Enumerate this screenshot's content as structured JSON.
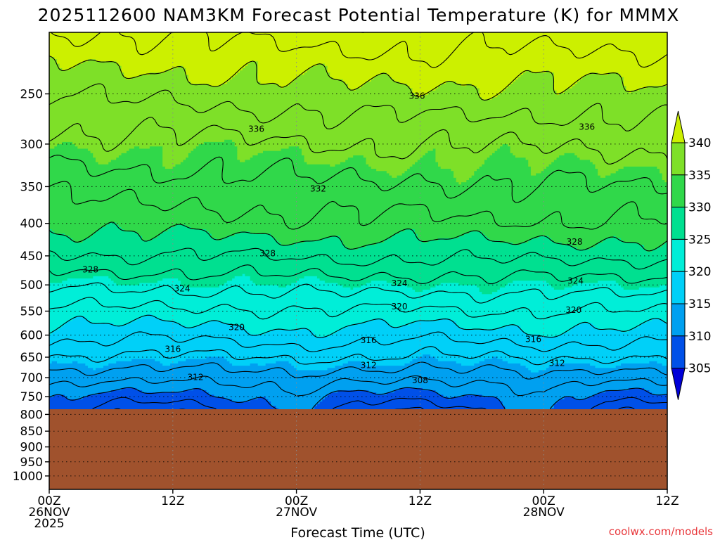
{
  "chart_data": {
    "type": "contour",
    "title": "2025112600 NAM3KM Forecast Potential Temperature (K) for MMMX",
    "xlabel": "Forecast Time (UTC)",
    "ylabel": "",
    "credit": "coolwx.com/models",
    "credit_color": "#e8363a",
    "x_ticks": [
      {
        "hour": 0,
        "lines": [
          "00Z",
          "26NOV",
          "2025"
        ]
      },
      {
        "hour": 12,
        "lines": [
          "12Z"
        ]
      },
      {
        "hour": 24,
        "lines": [
          "00Z",
          "27NOV"
        ]
      },
      {
        "hour": 36,
        "lines": [
          "12Z"
        ]
      },
      {
        "hour": 48,
        "lines": [
          "00Z",
          "28NOV"
        ]
      },
      {
        "hour": 60,
        "lines": [
          "12Z"
        ]
      }
    ],
    "x_range_hours": [
      0,
      60
    ],
    "y_range_hpa": [
      1050,
      200
    ],
    "y_scale": "log",
    "y_ticks": [
      250,
      300,
      350,
      400,
      450,
      500,
      550,
      600,
      650,
      700,
      750,
      800,
      850,
      900,
      950,
      1000
    ],
    "surface_pressure_hpa": 785,
    "underground_color": "#a0522d",
    "fill_bands": [
      {
        "range": [
          300,
          305
        ],
        "color": "#0000d8"
      },
      {
        "range": [
          305,
          310
        ],
        "color": "#0050e8"
      },
      {
        "range": [
          310,
          315
        ],
        "color": "#00a0f0"
      },
      {
        "range": [
          315,
          320
        ],
        "color": "#00d0f8"
      },
      {
        "range": [
          320,
          325
        ],
        "color": "#00eed8"
      },
      {
        "range": [
          325,
          330
        ],
        "color": "#00e090"
      },
      {
        "range": [
          330,
          335
        ],
        "color": "#30d84a"
      },
      {
        "range": [
          335,
          340
        ],
        "color": "#7ee028"
      },
      {
        "range": [
          340,
          345
        ],
        "color": "#ccf000"
      }
    ],
    "colorbar": {
      "labels": [
        305,
        310,
        315,
        320,
        325,
        330,
        335,
        340
      ],
      "colors": [
        "#0000d8",
        "#0050e8",
        "#00a0f0",
        "#00d0f8",
        "#00eed8",
        "#00e090",
        "#30d84a",
        "#7ee028",
        "#ccf000"
      ]
    },
    "profile_levels_hpa": [
      785,
      750,
      700,
      650,
      600,
      550,
      500,
      450,
      400,
      350,
      300,
      250,
      200
    ],
    "profile_times_hours": [
      0,
      6,
      12,
      18,
      24,
      30,
      36,
      42,
      48,
      54,
      60
    ],
    "theta_K": [
      [
        310,
        307,
        306,
        308,
        311,
        307,
        306,
        308,
        311,
        307,
        306
      ],
      [
        311,
        309,
        308.5,
        310,
        312,
        309,
        308.5,
        310,
        312,
        309,
        309
      ],
      [
        313.5,
        312.5,
        312,
        313,
        314,
        312.5,
        312,
        313,
        314,
        312.5,
        312.5
      ],
      [
        316,
        315.5,
        315.5,
        316,
        316.5,
        316,
        315.5,
        316,
        316.5,
        316,
        316
      ],
      [
        319,
        318.5,
        318.5,
        319,
        319.5,
        319,
        318.5,
        319,
        319.5,
        319,
        319
      ],
      [
        321.5,
        321.5,
        321.5,
        321.5,
        322,
        322,
        321.5,
        322,
        322,
        322,
        322
      ],
      [
        324.5,
        324.5,
        324.5,
        324.8,
        325,
        325,
        324.8,
        325,
        325.2,
        325.2,
        325
      ],
      [
        327.5,
        328,
        328,
        328,
        328.3,
        328.5,
        328.3,
        328.5,
        328.5,
        328.5,
        328.5
      ],
      [
        330.5,
        330.8,
        331,
        331.2,
        331.5,
        331.5,
        331.5,
        331.7,
        331.8,
        331.8,
        331.8
      ],
      [
        332.5,
        333,
        333,
        333.2,
        333.5,
        333.8,
        333.6,
        333.8,
        334,
        334,
        334
      ],
      [
        335.2,
        335.3,
        335.4,
        335.6,
        335.8,
        336,
        336,
        336.2,
        336,
        336.2,
        336.6
      ],
      [
        338,
        338.5,
        338.5,
        339,
        339,
        339.5,
        339.6,
        339.4,
        339.2,
        339.5,
        339.8
      ],
      [
        342,
        342,
        342.5,
        342.5,
        343,
        343,
        343,
        343,
        343,
        343,
        343
      ]
    ],
    "contour_interval_K": 2,
    "contour_labels": [
      {
        "value": 336,
        "hour": 20.1,
        "hpa": 284
      },
      {
        "value": 336,
        "hour": 35.7,
        "hpa": 252
      },
      {
        "value": 336,
        "hour": 52.2,
        "hpa": 282
      },
      {
        "value": 332,
        "hour": 26.1,
        "hpa": 353
      },
      {
        "value": 328,
        "hour": 4.0,
        "hpa": 473
      },
      {
        "value": 328,
        "hour": 21.2,
        "hpa": 446
      },
      {
        "value": 328,
        "hour": 51.0,
        "hpa": 428
      },
      {
        "value": 324,
        "hour": 12.9,
        "hpa": 507
      },
      {
        "value": 324,
        "hour": 34.0,
        "hpa": 497
      },
      {
        "value": 324,
        "hour": 51.1,
        "hpa": 493
      },
      {
        "value": 320,
        "hour": 18.2,
        "hpa": 583
      },
      {
        "value": 320,
        "hour": 34.0,
        "hpa": 541
      },
      {
        "value": 320,
        "hour": 50.9,
        "hpa": 548
      },
      {
        "value": 316,
        "hour": 12.0,
        "hpa": 631
      },
      {
        "value": 316,
        "hour": 31.0,
        "hpa": 611
      },
      {
        "value": 316,
        "hour": 47.0,
        "hpa": 609
      },
      {
        "value": 312,
        "hour": 14.2,
        "hpa": 699
      },
      {
        "value": 312,
        "hour": 31.0,
        "hpa": 669
      },
      {
        "value": 312,
        "hour": 49.3,
        "hpa": 664
      },
      {
        "value": 308,
        "hour": 36.0,
        "hpa": 707
      }
    ]
  }
}
